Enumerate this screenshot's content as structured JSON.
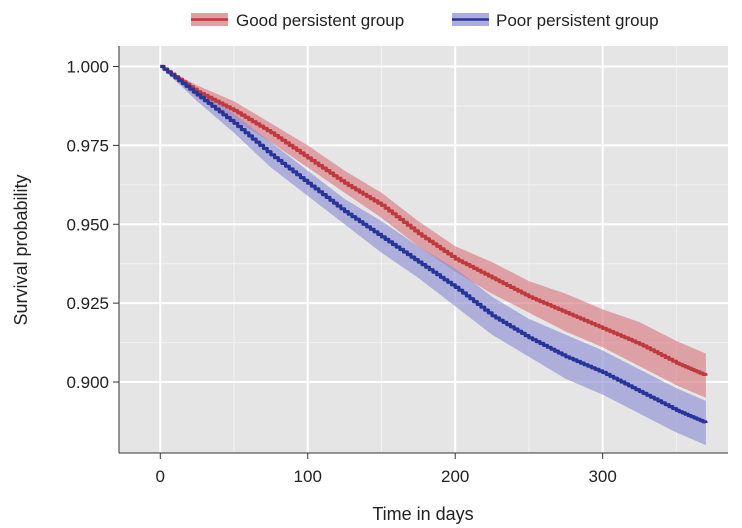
{
  "chart_data": {
    "type": "line",
    "xlabel": "Time in days",
    "ylabel": "Survival probability",
    "xlim": [
      -28,
      385
    ],
    "ylim": [
      0.8775,
      1.0065
    ],
    "xticks": [
      0,
      100,
      200,
      300
    ],
    "xtick_labels": [
      "0",
      "100",
      "200",
      "300"
    ],
    "yticks": [
      0.9,
      0.925,
      0.95,
      0.975,
      1.0
    ],
    "ytick_labels": [
      "0.900",
      "0.925",
      "0.950",
      "0.975",
      "1.000"
    ],
    "grid": true,
    "legend_position": "top",
    "background": "#e5e5e5",
    "series": [
      {
        "name": "Good persistent group",
        "color": "#c0393d",
        "band_color": "#d97d82",
        "x": [
          0,
          25,
          50,
          75,
          100,
          125,
          150,
          175,
          200,
          225,
          250,
          275,
          300,
          325,
          350,
          370
        ],
        "y": [
          1.0,
          0.992,
          0.986,
          0.979,
          0.971,
          0.963,
          0.956,
          0.947,
          0.939,
          0.933,
          0.927,
          0.922,
          0.917,
          0.912,
          0.906,
          0.902
        ],
        "lower": [
          1.0,
          0.99,
          0.983,
          0.976,
          0.968,
          0.96,
          0.952,
          0.943,
          0.935,
          0.928,
          0.922,
          0.916,
          0.911,
          0.905,
          0.899,
          0.895
        ],
        "upper": [
          1.0,
          0.994,
          0.989,
          0.982,
          0.975,
          0.967,
          0.96,
          0.951,
          0.943,
          0.938,
          0.932,
          0.928,
          0.923,
          0.919,
          0.913,
          0.909
        ]
      },
      {
        "name": "Poor persistent group",
        "color": "#27359a",
        "band_color": "#8f91d4",
        "x": [
          0,
          25,
          50,
          75,
          100,
          125,
          150,
          175,
          200,
          225,
          250,
          275,
          300,
          325,
          350,
          370
        ],
        "y": [
          1.0,
          0.991,
          0.982,
          0.972,
          0.963,
          0.954,
          0.946,
          0.938,
          0.93,
          0.921,
          0.914,
          0.908,
          0.903,
          0.897,
          0.891,
          0.887
        ],
        "lower": [
          1.0,
          0.989,
          0.979,
          0.968,
          0.959,
          0.95,
          0.941,
          0.933,
          0.924,
          0.915,
          0.908,
          0.901,
          0.896,
          0.89,
          0.884,
          0.88
        ],
        "upper": [
          1.0,
          0.993,
          0.985,
          0.976,
          0.967,
          0.958,
          0.951,
          0.943,
          0.936,
          0.927,
          0.92,
          0.915,
          0.91,
          0.904,
          0.898,
          0.894
        ]
      }
    ]
  }
}
